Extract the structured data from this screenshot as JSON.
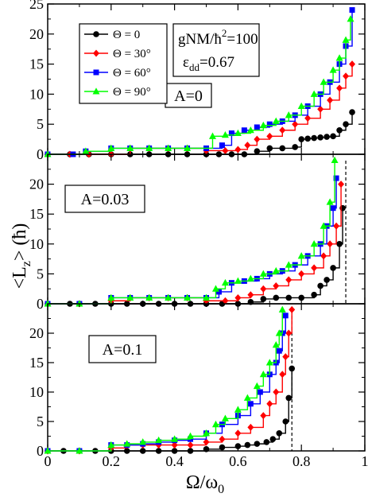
{
  "figure": {
    "ylabel": "<L",
    "ylabel_sub": "z",
    "ylabel_end": "> (ħ)",
    "xlabel": "Ω/ω",
    "xlabel_sub": "0"
  },
  "chart_data": [
    {
      "type": "line",
      "panel": "A=0",
      "annotation": "A=0",
      "params": {
        "gnm": "gNM/ħ",
        "gnm_sup": "2",
        "gnm_val": "=100",
        "eps": "ε",
        "eps_sub": "dd",
        "eps_val": "=0.67"
      },
      "xlim": [
        0,
        1
      ],
      "ylim": [
        0,
        25
      ],
      "yticks": [
        0,
        5,
        10,
        15,
        20,
        25
      ],
      "xticks": [
        0,
        0.2,
        0.4,
        0.6,
        0.8,
        1
      ],
      "xtick_labels": [
        "",
        "",
        "",
        "",
        "",
        ""
      ],
      "legend": {
        "position": "top-left"
      },
      "series": [
        {
          "name": "Θ = 0",
          "color": "#000000",
          "marker": "circle",
          "x": [
            0,
            0.07,
            0.13,
            0.2,
            0.26,
            0.32,
            0.38,
            0.44,
            0.5,
            0.54,
            0.58,
            0.62,
            0.66,
            0.7,
            0.74,
            0.78,
            0.8,
            0.82,
            0.84,
            0.86,
            0.88,
            0.9,
            0.92,
            0.94,
            0.96
          ],
          "y": [
            0,
            0,
            0,
            0,
            0,
            0,
            0,
            0,
            0,
            0,
            0,
            0,
            0.5,
            1,
            1,
            1.2,
            2.5,
            2.6,
            2.7,
            2.8,
            2.9,
            3,
            4,
            5,
            7
          ]
        },
        {
          "name": "Θ = 30°",
          "color": "#ff0000",
          "marker": "diamond",
          "x": [
            0,
            0.07,
            0.13,
            0.2,
            0.26,
            0.32,
            0.38,
            0.44,
            0.5,
            0.56,
            0.6,
            0.63,
            0.66,
            0.7,
            0.74,
            0.78,
            0.82,
            0.86,
            0.89,
            0.92,
            0.94,
            0.96
          ],
          "y": [
            0,
            0,
            0,
            0,
            1,
            1,
            1,
            1,
            0.6,
            0.6,
            0.8,
            1.5,
            2.5,
            3,
            4,
            5,
            6,
            7.5,
            9,
            11,
            13,
            15
          ]
        },
        {
          "name": "Θ = 60°",
          "color": "#0000ff",
          "marker": "square",
          "x": [
            0,
            0.08,
            0.12,
            0.2,
            0.26,
            0.32,
            0.38,
            0.44,
            0.5,
            0.55,
            0.58,
            0.62,
            0.66,
            0.7,
            0.74,
            0.78,
            0.82,
            0.86,
            0.89,
            0.92,
            0.94,
            0.96
          ],
          "y": [
            0,
            0,
            0.5,
            1,
            1,
            1,
            1,
            1,
            1,
            1.5,
            3.5,
            4,
            4.5,
            5,
            5.5,
            6.5,
            8,
            10,
            12,
            15,
            18,
            24
          ]
        },
        {
          "name": "Θ = 90°",
          "color": "#00ff00",
          "marker": "triangle",
          "x": [
            0,
            0.12,
            0.2,
            0.26,
            0.32,
            0.38,
            0.44,
            0.52,
            0.56,
            0.6,
            0.64,
            0.68,
            0.72,
            0.76,
            0.8,
            0.84,
            0.87,
            0.9,
            0.92,
            0.94,
            0.955
          ],
          "y": [
            0,
            0.5,
            1,
            1,
            1,
            1,
            1,
            3,
            3.2,
            3.5,
            4,
            4.8,
            5.5,
            6.5,
            8,
            10,
            12,
            14,
            16,
            19,
            22.5
          ]
        }
      ]
    },
    {
      "type": "line",
      "panel": "A=0.03",
      "annotation": "A=0.03",
      "xlim": [
        0,
        1
      ],
      "ylim": [
        0,
        25
      ],
      "yticks": [
        0,
        5,
        10,
        15,
        20
      ],
      "xticks": [
        0,
        0.2,
        0.4,
        0.6,
        0.8,
        1
      ],
      "xtick_labels": [
        "",
        "",
        "",
        "",
        "",
        ""
      ],
      "vline": 0.94,
      "series": [
        {
          "name": "Θ = 0",
          "color": "#000000",
          "marker": "circle",
          "x": [
            0,
            0.07,
            0.1,
            0.15,
            0.2,
            0.25,
            0.3,
            0.35,
            0.4,
            0.45,
            0.5,
            0.55,
            0.6,
            0.64,
            0.68,
            0.72,
            0.76,
            0.8,
            0.84,
            0.86,
            0.88,
            0.9,
            0.92,
            0.93
          ],
          "y": [
            0,
            0,
            0,
            0,
            0,
            0,
            0,
            0,
            0,
            0,
            0,
            0,
            0,
            0.3,
            0.8,
            1,
            1,
            1,
            1.5,
            3,
            4,
            6,
            10,
            16
          ]
        },
        {
          "name": "Θ = 30°",
          "color": "#ff0000",
          "marker": "diamond",
          "x": [
            0,
            0.1,
            0.2,
            0.26,
            0.32,
            0.38,
            0.44,
            0.5,
            0.56,
            0.6,
            0.64,
            0.68,
            0.72,
            0.76,
            0.8,
            0.84,
            0.87,
            0.89,
            0.91,
            0.925
          ],
          "y": [
            0,
            0,
            0.5,
            1,
            1,
            1,
            1,
            0.5,
            0.5,
            1,
            1.5,
            2.5,
            3,
            4,
            5,
            6,
            8,
            10,
            13,
            20
          ]
        },
        {
          "name": "Θ = 60°",
          "color": "#0000ff",
          "marker": "square",
          "x": [
            0,
            0.1,
            0.2,
            0.26,
            0.32,
            0.38,
            0.44,
            0.5,
            0.54,
            0.58,
            0.62,
            0.66,
            0.7,
            0.74,
            0.78,
            0.82,
            0.86,
            0.88,
            0.9,
            0.91
          ],
          "y": [
            0,
            0,
            1,
            1,
            1,
            1,
            1,
            1,
            2,
            3.5,
            3.8,
            4.2,
            5,
            5.5,
            6.5,
            8,
            10,
            13,
            16,
            21
          ]
        },
        {
          "name": "Θ = 90°",
          "color": "#00ff00",
          "marker": "triangle",
          "x": [
            0,
            0.1,
            0.2,
            0.26,
            0.32,
            0.38,
            0.44,
            0.5,
            0.53,
            0.56,
            0.6,
            0.64,
            0.68,
            0.72,
            0.76,
            0.8,
            0.84,
            0.87,
            0.89,
            0.905
          ],
          "y": [
            0,
            0,
            1,
            1,
            1,
            1,
            1,
            1,
            2.5,
            3.5,
            3.8,
            4.2,
            5,
            5.5,
            6.5,
            8,
            10,
            13,
            17,
            24
          ]
        }
      ]
    },
    {
      "type": "line",
      "panel": "A=0.1",
      "annotation": "A=0.1",
      "xlim": [
        0,
        1
      ],
      "ylim": [
        0,
        25
      ],
      "yticks": [
        0,
        5,
        10,
        15,
        20
      ],
      "xticks": [
        0,
        0.2,
        0.4,
        0.6,
        0.8,
        1
      ],
      "xtick_labels": [
        "0",
        "0.2",
        "0.4",
        "0.6",
        "0.8",
        "1"
      ],
      "vline": 0.77,
      "series": [
        {
          "name": "Θ = 0",
          "color": "#000000",
          "marker": "circle",
          "x": [
            0,
            0.05,
            0.1,
            0.15,
            0.2,
            0.25,
            0.3,
            0.35,
            0.4,
            0.45,
            0.5,
            0.55,
            0.6,
            0.63,
            0.66,
            0.69,
            0.71,
            0.73,
            0.75,
            0.76,
            0.77
          ],
          "y": [
            0,
            0,
            0,
            0,
            0,
            0,
            0,
            0,
            0,
            0,
            0.3,
            0.6,
            0.8,
            1,
            1.2,
            1.5,
            2,
            3,
            5,
            9,
            14
          ]
        },
        {
          "name": "Θ = 30°",
          "color": "#ff0000",
          "marker": "diamond",
          "x": [
            0,
            0.1,
            0.2,
            0.25,
            0.3,
            0.35,
            0.4,
            0.45,
            0.5,
            0.55,
            0.6,
            0.64,
            0.68,
            0.7,
            0.72,
            0.74,
            0.75,
            0.76,
            0.77
          ],
          "y": [
            0,
            0,
            0.5,
            1,
            1,
            1,
            1,
            1,
            1.5,
            2,
            3,
            4,
            6,
            8,
            10,
            13,
            16,
            20,
            24
          ]
        },
        {
          "name": "Θ = 60°",
          "color": "#0000ff",
          "marker": "square",
          "x": [
            0,
            0.1,
            0.2,
            0.25,
            0.3,
            0.35,
            0.4,
            0.45,
            0.5,
            0.55,
            0.6,
            0.64,
            0.67,
            0.7,
            0.72,
            0.73,
            0.74,
            0.75
          ],
          "y": [
            0,
            0,
            1,
            1,
            1.2,
            1.5,
            1.8,
            2,
            3,
            4.5,
            6,
            8,
            10,
            13,
            15,
            17,
            20,
            23
          ]
        },
        {
          "name": "Θ = 90°",
          "color": "#00ff00",
          "marker": "triangle",
          "x": [
            0,
            0.1,
            0.2,
            0.25,
            0.3,
            0.35,
            0.4,
            0.45,
            0.5,
            0.53,
            0.56,
            0.6,
            0.63,
            0.66,
            0.68,
            0.7,
            0.72,
            0.73,
            0.74
          ],
          "y": [
            0,
            0,
            1,
            1.2,
            1.5,
            1.8,
            2,
            2.5,
            3,
            4.5,
            5.5,
            7,
            9,
            11,
            13,
            15,
            18,
            20,
            24
          ]
        }
      ]
    }
  ]
}
